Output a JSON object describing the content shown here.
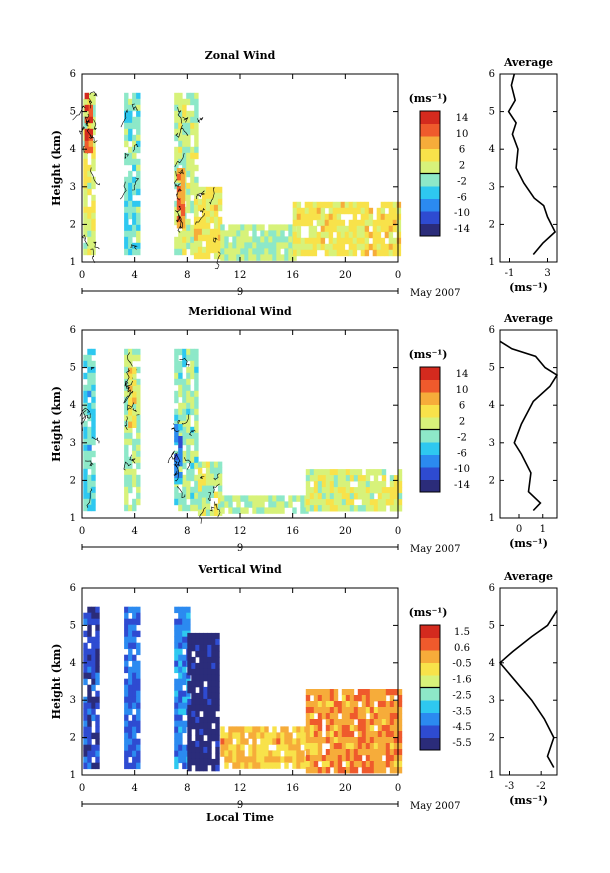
{
  "chart_data": [
    {
      "type": "heatmap",
      "title": "Zonal Wind",
      "ylabel": "Height (km)",
      "ylim": [
        1,
        6
      ],
      "x_ticks": [
        "0",
        "4",
        "8",
        "12",
        "16",
        "20",
        "0"
      ],
      "y_ticks": [
        "1",
        "2",
        "3",
        "4",
        "5",
        "6"
      ],
      "date_labels": [
        "9",
        "May 2007"
      ],
      "colorbar_unit": "(ms⁻¹)",
      "colorbar_ticks": [
        "14",
        "10",
        "6",
        "2",
        "-2",
        "-6",
        "-10",
        "-14"
      ],
      "colorbar_range": [
        -16,
        16
      ],
      "regions": [
        {
          "x": [
            0.1,
            0.9
          ],
          "y": [
            1.2,
            5.5
          ],
          "value": 2
        },
        {
          "x": [
            0.2,
            0.6
          ],
          "y": [
            4.0,
            5.5
          ],
          "value": 12
        },
        {
          "x": [
            3.2,
            4.2
          ],
          "y": [
            1.2,
            5.5
          ],
          "value": -2
        },
        {
          "x": [
            7.0,
            8.8
          ],
          "y": [
            1.2,
            5.5
          ],
          "value": 1
        },
        {
          "x": [
            7.2,
            7.6
          ],
          "y": [
            2.0,
            3.5
          ],
          "value": 10
        },
        {
          "x": [
            8.5,
            10.5
          ],
          "y": [
            1.2,
            3.0
          ],
          "value": 4
        },
        {
          "x": [
            10.5,
            16.0
          ],
          "y": [
            1.2,
            2.0
          ],
          "value": 0
        },
        {
          "x": [
            16.0,
            24.0
          ],
          "y": [
            1.2,
            2.6
          ],
          "value": 4
        }
      ]
    },
    {
      "type": "heatmap",
      "title": "Meridional Wind",
      "ylabel": "Height (km)",
      "ylim": [
        1,
        6
      ],
      "x_ticks": [
        "0",
        "4",
        "8",
        "12",
        "16",
        "20",
        "0"
      ],
      "y_ticks": [
        "1",
        "2",
        "3",
        "4",
        "5",
        "6"
      ],
      "date_labels": [
        "9",
        "May 2007"
      ],
      "colorbar_unit": "(ms⁻¹)",
      "colorbar_ticks": [
        "14",
        "10",
        "6",
        "2",
        "-2",
        "-6",
        "-10",
        "-14"
      ],
      "colorbar_range": [
        -16,
        16
      ],
      "regions": [
        {
          "x": [
            0.1,
            1.0
          ],
          "y": [
            1.2,
            5.5
          ],
          "value": -4
        },
        {
          "x": [
            3.2,
            4.2
          ],
          "y": [
            1.2,
            5.5
          ],
          "value": 0
        },
        {
          "x": [
            3.5,
            4.0
          ],
          "y": [
            3.5,
            5.0
          ],
          "value": 5
        },
        {
          "x": [
            7.0,
            8.8
          ],
          "y": [
            1.2,
            5.5
          ],
          "value": -1
        },
        {
          "x": [
            7.0,
            7.4
          ],
          "y": [
            2.0,
            3.5
          ],
          "value": -8
        },
        {
          "x": [
            8.8,
            10.5
          ],
          "y": [
            1.2,
            2.5
          ],
          "value": 1
        },
        {
          "x": [
            10.5,
            17.0
          ],
          "y": [
            1.2,
            1.6
          ],
          "value": 0
        },
        {
          "x": [
            17.0,
            24.0
          ],
          "y": [
            1.2,
            2.3
          ],
          "value": 2
        }
      ]
    },
    {
      "type": "heatmap",
      "title": "Vertical Wind",
      "ylabel": "Height (km)",
      "xlabel": "Local Time",
      "ylim": [
        1,
        6
      ],
      "x_ticks": [
        "0",
        "4",
        "8",
        "12",
        "16",
        "20",
        "0"
      ],
      "y_ticks": [
        "1",
        "2",
        "3",
        "4",
        "5",
        "6"
      ],
      "date_labels": [
        "9",
        "May 2007"
      ],
      "colorbar_unit": "(ms⁻¹)",
      "colorbar_ticks": [
        "1.5",
        "0.6",
        "-0.5",
        "-1.6",
        "-2.5",
        "-3.5",
        "-4.5",
        "-5.5"
      ],
      "colorbar_range": [
        -6,
        2
      ],
      "regions": [
        {
          "x": [
            0.1,
            1.2
          ],
          "y": [
            1.2,
            5.5
          ],
          "value": -5
        },
        {
          "x": [
            3.2,
            4.2
          ],
          "y": [
            1.2,
            5.5
          ],
          "value": -4.5
        },
        {
          "x": [
            7.0,
            8.0
          ],
          "y": [
            1.2,
            5.5
          ],
          "value": -4
        },
        {
          "x": [
            8.0,
            10.2
          ],
          "y": [
            1.2,
            4.8
          ],
          "value": -5.7
        },
        {
          "x": [
            10.5,
            17.0
          ],
          "y": [
            1.2,
            2.3
          ],
          "value": -0.3
        },
        {
          "x": [
            17.0,
            24.0
          ],
          "y": [
            1.2,
            3.3
          ],
          "value": 0.2
        }
      ]
    }
  ],
  "profiles": [
    {
      "title": "Average",
      "xlabel": "(ms⁻¹)",
      "x_ticks": [
        "-1",
        "3"
      ],
      "y_ticks": [
        "1",
        "2",
        "3",
        "4",
        "5",
        "6"
      ],
      "xlim": [
        -2,
        4
      ],
      "ylim": [
        1,
        6
      ],
      "points": [
        [
          1.5,
          1.2
        ],
        [
          2.5,
          1.5
        ],
        [
          3.8,
          1.8
        ],
        [
          3.0,
          2.2
        ],
        [
          2.6,
          2.5
        ],
        [
          1.6,
          2.7
        ],
        [
          0.5,
          3.1
        ],
        [
          -0.3,
          3.5
        ],
        [
          -0.1,
          4.0
        ],
        [
          -0.7,
          4.4
        ],
        [
          -0.3,
          4.7
        ],
        [
          -1.1,
          5.0
        ],
        [
          -0.4,
          5.3
        ],
        [
          -0.8,
          5.7
        ],
        [
          -0.5,
          6.0
        ]
      ]
    },
    {
      "title": "Average",
      "xlabel": "(ms⁻¹)",
      "x_ticks": [
        "0",
        "1"
      ],
      "y_ticks": [
        "1",
        "2",
        "3",
        "4",
        "5",
        "6"
      ],
      "xlim": [
        -0.8,
        1.6
      ],
      "ylim": [
        1,
        6
      ],
      "points": [
        [
          0.6,
          1.2
        ],
        [
          0.9,
          1.4
        ],
        [
          0.4,
          1.7
        ],
        [
          0.5,
          2.2
        ],
        [
          0.1,
          2.7
        ],
        [
          -0.2,
          3.0
        ],
        [
          0.1,
          3.5
        ],
        [
          0.6,
          4.1
        ],
        [
          1.3,
          4.5
        ],
        [
          1.6,
          4.8
        ],
        [
          1.1,
          5.0
        ],
        [
          0.7,
          5.3
        ],
        [
          -0.3,
          5.5
        ],
        [
          -0.8,
          5.7
        ]
      ]
    },
    {
      "title": "Average",
      "xlabel": "(ms⁻¹)",
      "x_ticks": [
        "-3",
        "-2"
      ],
      "y_ticks": [
        "1",
        "2",
        "3",
        "4",
        "5",
        "6"
      ],
      "xlim": [
        -3.3,
        -1.5
      ],
      "ylim": [
        1,
        6
      ],
      "points": [
        [
          -1.6,
          1.2
        ],
        [
          -1.8,
          1.5
        ],
        [
          -1.6,
          2.0
        ],
        [
          -1.9,
          2.5
        ],
        [
          -2.3,
          3.0
        ],
        [
          -2.9,
          3.6
        ],
        [
          -3.3,
          4.0
        ],
        [
          -2.9,
          4.3
        ],
        [
          -2.3,
          4.7
        ],
        [
          -1.8,
          5.0
        ],
        [
          -1.5,
          5.4
        ]
      ]
    }
  ],
  "colors": {
    "scale": [
      "#2b2c7a",
      "#2e4bd1",
      "#2b8af0",
      "#2ec8f0",
      "#8de8c8",
      "#d7f27a",
      "#f8e24a",
      "#f6ac3a",
      "#ef5a2c",
      "#d42a1e"
    ],
    "contour": "#000000",
    "axis": "#000000"
  }
}
